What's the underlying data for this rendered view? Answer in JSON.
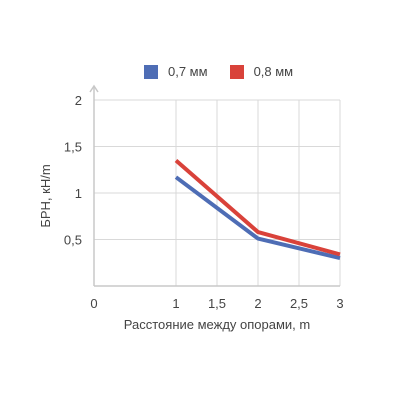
{
  "chart_data": {
    "type": "line",
    "xlabel": "Расстояние между опорами, m",
    "ylabel": "БРН, кН/m",
    "xlim": [
      0,
      3
    ],
    "ylim": [
      0,
      2
    ],
    "x_ticks": [
      "0",
      "1",
      "1,5",
      "2",
      "2,5",
      "3"
    ],
    "x_tick_values": [
      0,
      1,
      1.5,
      2,
      2.5,
      3
    ],
    "y_ticks": [
      "0,5",
      "1",
      "1,5",
      "2"
    ],
    "y_tick_values": [
      0.5,
      1,
      1.5,
      2
    ],
    "grid": true,
    "legend_position": "top",
    "series": [
      {
        "name": "0,7 мм",
        "color": "#4e6db5",
        "x": [
          1,
          2,
          3
        ],
        "y": [
          1.17,
          0.51,
          0.3
        ]
      },
      {
        "name": "0,8 мм",
        "color": "#d9423a",
        "x": [
          1,
          2,
          3
        ],
        "y": [
          1.35,
          0.58,
          0.34
        ]
      }
    ]
  }
}
